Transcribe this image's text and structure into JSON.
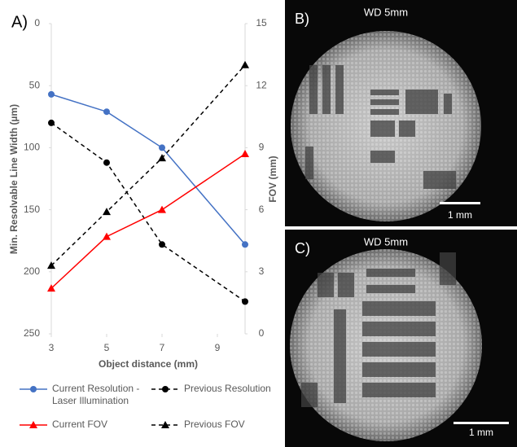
{
  "chart_data": {
    "type": "line",
    "panel_label": "A)",
    "x": [
      3,
      5,
      7,
      10
    ],
    "xlim": [
      3,
      10
    ],
    "xticks": [
      3,
      5,
      7,
      9
    ],
    "ylim": [
      0,
      250
    ],
    "yticks": [
      0,
      50,
      100,
      150,
      200,
      250
    ],
    "y_inverted": true,
    "y2lim": [
      0,
      15
    ],
    "y2ticks": [
      0,
      3,
      6,
      9,
      12,
      15
    ],
    "xlabel": "Object distance (mm)",
    "ylabel": "Min. Resolvable Line Width (µm)",
    "y2label": "FOV (mm)",
    "series": [
      {
        "name": "Current Resolution - Laser Illumination",
        "color": "#4472c4",
        "marker": "circle",
        "dashed": false,
        "values": [
          57,
          71,
          100,
          178
        ]
      },
      {
        "name": "Previous Resolution",
        "color": "#000000",
        "marker": "circle",
        "dashed": true,
        "values": [
          80,
          112,
          178,
          224
        ]
      },
      {
        "name": "Current FOV",
        "color": "#ff0000",
        "marker": "triangle",
        "dashed": false,
        "axis": "y2",
        "values": [
          2.2,
          4.7,
          6.0,
          8.7
        ]
      },
      {
        "name": "Previous FOV",
        "color": "#000000",
        "marker": "triangle",
        "dashed": true,
        "axis": "y2",
        "values": [
          3.3,
          5.9,
          8.5,
          13.0
        ]
      }
    ]
  },
  "images": [
    {
      "label": "B)",
      "title": "WD 5mm",
      "scale": "1 mm"
    },
    {
      "label": "C)",
      "title": "WD 5mm",
      "scale": "1 mm"
    }
  ]
}
